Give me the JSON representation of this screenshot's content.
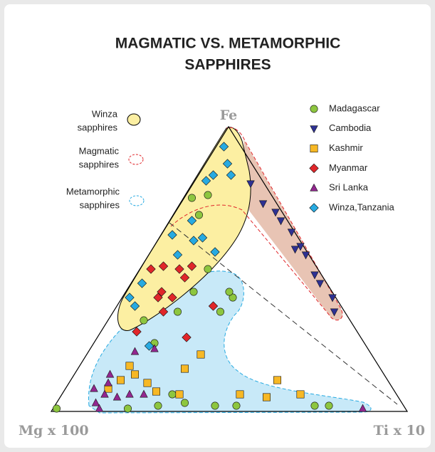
{
  "chart_data": {
    "type": "ternary",
    "title": [
      "MAGMATIC VS. METAMORPHIC",
      "SAPPHIRES"
    ],
    "axes": {
      "top": "Fe",
      "left": "Mg x 100",
      "right": "Ti x 10"
    },
    "regions": [
      {
        "name": [
          "Winza",
          "sapphires"
        ]
      },
      {
        "name": [
          "Magmatic",
          "sapphires"
        ]
      },
      {
        "name": [
          "Metamorphic",
          "sapphires"
        ]
      }
    ],
    "series": [
      {
        "name": "Madagascar",
        "color": "#8dc63f",
        "marker": "circle",
        "values": [
          [
            1,
            98,
            1
          ],
          [
            1,
            78,
            21
          ],
          [
            2,
            69,
            29
          ],
          [
            3,
            61,
            36
          ],
          [
            2,
            53,
            45
          ],
          [
            2,
            47,
            51
          ],
          [
            2,
            25,
            73
          ],
          [
            2,
            21,
            77
          ],
          [
            6,
            63,
            31
          ],
          [
            40,
            29,
            31
          ],
          [
            42,
            29,
            29
          ],
          [
            35,
            35,
            30
          ],
          [
            50,
            31,
            19
          ],
          [
            75,
            23,
            2
          ],
          [
            69,
            24,
            7
          ],
          [
            76,
            18,
            6
          ],
          [
            35,
            47,
            18
          ],
          [
            32,
            58,
            10
          ],
          [
            24,
            59,
            17
          ],
          [
            42,
            39,
            19
          ]
        ]
      },
      {
        "name": "Cambodia",
        "color": "#2e3192",
        "marker": "triangle-down",
        "values": [
          [
            80,
            4,
            16
          ],
          [
            73,
            4,
            23
          ],
          [
            70,
            2,
            28
          ],
          [
            67,
            2,
            31
          ],
          [
            63,
            1,
            36
          ],
          [
            58,
            1,
            41
          ],
          [
            55,
            1,
            44
          ],
          [
            48,
            2,
            50
          ],
          [
            45,
            2,
            53
          ],
          [
            40,
            1,
            59
          ],
          [
            35,
            3,
            62
          ],
          [
            57,
            3,
            40
          ]
        ]
      },
      {
        "name": "Kashmir",
        "color": "#f7b825",
        "marker": "square",
        "values": [
          [
            16,
            70,
            14
          ],
          [
            13,
            70,
            17
          ],
          [
            10,
            68,
            22
          ],
          [
            7,
            67,
            26
          ],
          [
            11,
            75,
            14
          ],
          [
            8,
            80,
            12
          ],
          [
            6,
            61,
            33
          ],
          [
            15,
            55,
            30
          ],
          [
            6,
            44,
            50
          ],
          [
            5,
            37,
            58
          ],
          [
            6,
            27,
            67
          ],
          [
            11,
            31,
            58
          ],
          [
            20,
            48,
            32
          ]
        ]
      },
      {
        "name": "Myanmar",
        "color": "#e0262a",
        "marker": "diamond",
        "values": [
          [
            50,
            47,
            3
          ],
          [
            51,
            43,
            6
          ],
          [
            50,
            39,
            11
          ],
          [
            51,
            35,
            14
          ],
          [
            40,
            50,
            10
          ],
          [
            40,
            46,
            14
          ],
          [
            35,
            51,
            14
          ],
          [
            28,
            62,
            10
          ],
          [
            26,
            49,
            25
          ],
          [
            37,
            36,
            27
          ],
          [
            47,
            39,
            14
          ],
          [
            42,
            48,
            10
          ]
        ]
      },
      {
        "name": "Sri Lanka",
        "color": "#92278f",
        "marker": "triangle",
        "values": [
          [
            3,
            86,
            11
          ],
          [
            6,
            82,
            12
          ],
          [
            10,
            79,
            11
          ],
          [
            1,
            86,
            13
          ],
          [
            5,
            79,
            16
          ],
          [
            6,
            75,
            19
          ],
          [
            6,
            71,
            23
          ],
          [
            21,
            66,
            13
          ],
          [
            22,
            60,
            18
          ],
          [
            1,
            12,
            87
          ],
          [
            8,
            84,
            8
          ],
          [
            13,
            77,
            10
          ]
        ]
      },
      {
        "name": "Winza,Tanzania",
        "color": "#27aae1",
        "marker": "diamond",
        "values": [
          [
            93,
            5,
            2
          ],
          [
            87,
            7,
            6
          ],
          [
            83,
            8,
            9
          ],
          [
            83,
            13,
            4
          ],
          [
            81,
            16,
            3
          ],
          [
            67,
            27,
            6
          ],
          [
            61,
            27,
            12
          ],
          [
            56,
            26,
            18
          ],
          [
            60,
            30,
            10
          ],
          [
            55,
            37,
            8
          ],
          [
            45,
            52,
            3
          ],
          [
            40,
            58,
            2
          ],
          [
            37,
            58,
            5
          ],
          [
            23,
            61,
            16
          ],
          [
            62,
            35,
            3
          ]
        ]
      }
    ]
  }
}
